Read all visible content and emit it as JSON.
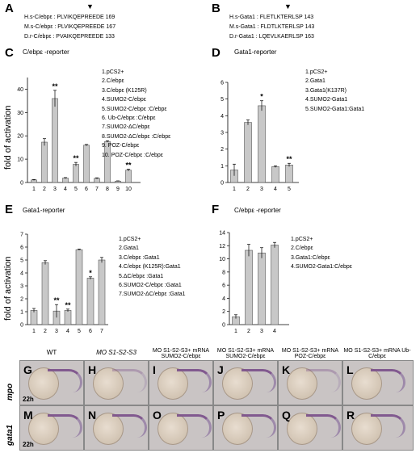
{
  "panels": {
    "A": {
      "label": "A",
      "sequences": [
        "H.s-C/ebpε : PLVIKQEPREEDE 169",
        "M.s-C/ebpε : PLVIKQEPREEDE 167",
        "D.r-C/ebpε : PVAIKQEPREEDE 133"
      ],
      "marker": "▼"
    },
    "B": {
      "label": "B",
      "sequences": [
        "H.s-Gata1 : FLETLKTERLSP 143",
        "M.s-Gata1 : FLDTLKTERLSP 143",
        "D.r-Gata1 : LQEVLKAERLSP 163"
      ],
      "marker": "▼"
    },
    "C": {
      "label": "C",
      "legend": [
        "1.pCS2+",
        "2.C/ebpε",
        "3.C/ebpε (K125R)",
        "4.SUMO2-C/ebpε",
        "5.SUMO2-C/ebpε :C/ebpε",
        "6. Ub-C/ebpε :C/ebpε",
        "7.SUMO2-ΔC/ebpε",
        "8.SUMO2-ΔC/ebpε :C/ebpε",
        "9. POZ-C/ebpε",
        "10. POZ-C/ebpε :C/ebpε"
      ]
    },
    "D": {
      "label": "D",
      "legend": [
        "1.pCS2+",
        "2.Gata1",
        "3.Gata1(K137R)",
        "4.SUMO2-Gata1",
        "5.SUMO2-Gata1:Gata1"
      ]
    },
    "E": {
      "label": "E",
      "legend": [
        "1.pCS2+",
        "2.Gata1",
        "3.C/ebpε :Gata1",
        "4.C/ebpε (K125R):Gata1",
        "5.ΔC/ebpε :Gata1",
        "6.SUMO2-C/ebpε :Gata1",
        "7.SUMO2-ΔC/ebpε :Gata1"
      ]
    },
    "F": {
      "label": "F",
      "legend": [
        "1.pCS2+",
        "2.C/ebpε",
        "3.Gata1:C/ebpε",
        "4.SUMO2-Gata1:C/ebpε"
      ]
    }
  },
  "chart_data": [
    {
      "type": "bar",
      "panel": "C",
      "title": "C/ebpε -reporter",
      "ylabel": "fold of activation",
      "categories": [
        "1",
        "2",
        "3",
        "4",
        "5",
        "6",
        "7",
        "8",
        "9",
        "10"
      ],
      "values": [
        1.1,
        17.3,
        36.0,
        1.9,
        7.8,
        16.0,
        1.8,
        17.6,
        0.6,
        5.3
      ],
      "errors": [
        0.2,
        1.5,
        3.5,
        0.2,
        0.8,
        0.3,
        0.2,
        0.3,
        0.1,
        0.4
      ],
      "annotations": [
        "",
        "",
        "**",
        "",
        "**",
        "",
        "",
        "",
        "",
        "**"
      ],
      "ylim": [
        0,
        45
      ],
      "yticks": [
        "0",
        "10",
        "20",
        "30",
        "40"
      ]
    },
    {
      "type": "bar",
      "panel": "D",
      "title": "Gata1-reporter",
      "ylabel": "",
      "categories": [
        "1",
        "2",
        "3",
        "4",
        "5"
      ],
      "values": [
        0.75,
        3.6,
        4.6,
        0.95,
        1.05
      ],
      "errors": [
        0.35,
        0.15,
        0.3,
        0.05,
        0.1
      ],
      "annotations": [
        "",
        "",
        "*",
        "",
        "**"
      ],
      "ylim": [
        0,
        6
      ],
      "yticks": [
        "0",
        "1",
        "2",
        "3",
        "4",
        "5",
        "6"
      ]
    },
    {
      "type": "bar",
      "panel": "E",
      "title": "Gata1-reporter",
      "ylabel": "fold of activation",
      "categories": [
        "1",
        "2",
        "3",
        "4",
        "5",
        "6",
        "7"
      ],
      "values": [
        1.1,
        4.8,
        1.05,
        1.1,
        5.8,
        3.6,
        5.0
      ],
      "errors": [
        0.15,
        0.15,
        0.5,
        0.1,
        0.05,
        0.1,
        0.2
      ],
      "annotations": [
        "",
        "",
        "**",
        "**",
        "",
        "*",
        ""
      ],
      "ylim": [
        0,
        7
      ],
      "yticks": [
        "0",
        "1",
        "2",
        "3",
        "4",
        "5",
        "6",
        "7"
      ]
    },
    {
      "type": "bar",
      "panel": "F",
      "title": "C/ebpε -reporter",
      "ylabel": "",
      "categories": [
        "1",
        "2",
        "3",
        "4"
      ],
      "values": [
        1.2,
        11.3,
        10.9,
        12.1
      ],
      "errors": [
        0.3,
        0.9,
        0.8,
        0.4
      ],
      "annotations": [
        "",
        "",
        "",
        ""
      ],
      "ylim": [
        0,
        14
      ],
      "yticks": [
        "0",
        "2",
        "4",
        "6",
        "8",
        "10",
        "12",
        "14"
      ]
    }
  ],
  "embryo_grid": {
    "columns": [
      "WT",
      "MO S1-S2-S3",
      "MO S1-S2-S3+ mRNA SUMO2-C/ebpε",
      "MO S1-S2-S3+ mRNA SUMO2-C/ebpε",
      "MO S1-S2-S3+ mRNA POZ-C/ebpε",
      "MO S1-S2-S3+ mRNA Ub-C/ebpε"
    ],
    "rows": [
      {
        "gene": "mpo",
        "stage": "22h",
        "letters": [
          "G",
          "H",
          "I",
          "J",
          "K",
          "L"
        ]
      },
      {
        "gene": "gata1",
        "stage": "22h",
        "letters": [
          "M",
          "N",
          "O",
          "P",
          "Q",
          "R"
        ]
      }
    ]
  }
}
